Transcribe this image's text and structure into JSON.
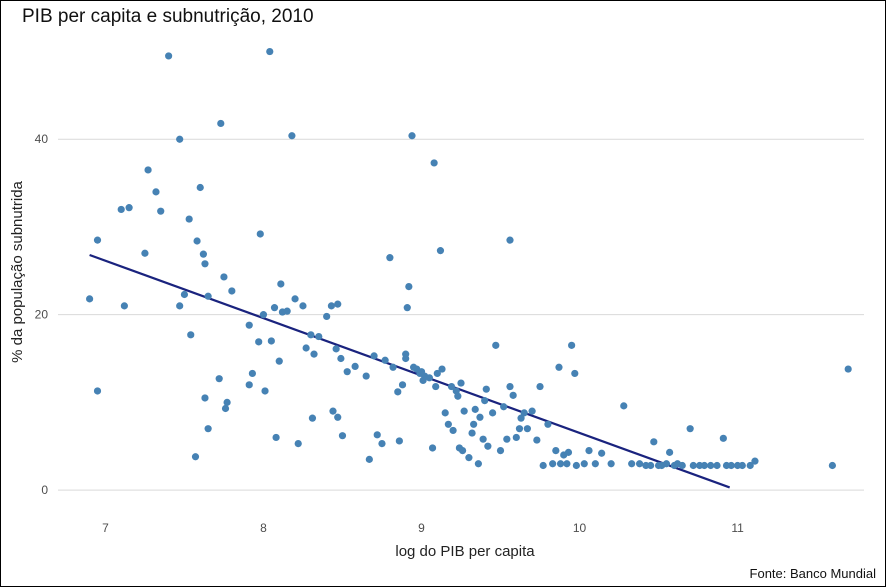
{
  "chart_data": {
    "type": "scatter",
    "title": "PIB per capita e subnutrição, 2010",
    "caption": "Fonte: Banco Mundial",
    "xlabel": "log do PIB per capita",
    "ylabel": "% da população subnutrida",
    "xlim": [
      6.7,
      11.8
    ],
    "ylim": [
      -2.5,
      52
    ],
    "x_ticks": [
      7,
      8,
      9,
      10,
      11
    ],
    "y_ticks": [
      0,
      20,
      40
    ],
    "grid": true,
    "point_color": "#4682b4",
    "line_color": "#1a237e",
    "trend_line": {
      "x": [
        6.9,
        10.95
      ],
      "y": [
        26.8,
        0.3
      ]
    },
    "points": [
      [
        6.9,
        21.8
      ],
      [
        6.95,
        28.5
      ],
      [
        6.95,
        11.3
      ],
      [
        7.1,
        32
      ],
      [
        7.12,
        21
      ],
      [
        7.15,
        32.2
      ],
      [
        7.25,
        27
      ],
      [
        7.27,
        36.5
      ],
      [
        7.32,
        34
      ],
      [
        7.35,
        31.8
      ],
      [
        7.4,
        49.5
      ],
      [
        7.47,
        40
      ],
      [
        7.47,
        21
      ],
      [
        7.5,
        22.3
      ],
      [
        7.53,
        30.9
      ],
      [
        7.54,
        17.7
      ],
      [
        7.57,
        3.8
      ],
      [
        7.58,
        28.4
      ],
      [
        7.6,
        34.5
      ],
      [
        7.62,
        26.9
      ],
      [
        7.63,
        25.8
      ],
      [
        7.63,
        10.5
      ],
      [
        7.65,
        7
      ],
      [
        7.65,
        22.1
      ],
      [
        7.72,
        12.7
      ],
      [
        7.73,
        41.8
      ],
      [
        7.75,
        24.3
      ],
      [
        7.76,
        9.3
      ],
      [
        7.77,
        10
      ],
      [
        7.8,
        22.7
      ],
      [
        7.91,
        12
      ],
      [
        7.91,
        18.8
      ],
      [
        7.93,
        13.3
      ],
      [
        7.97,
        16.9
      ],
      [
        7.98,
        29.2
      ],
      [
        8.0,
        20
      ],
      [
        8.01,
        11.3
      ],
      [
        8.04,
        50
      ],
      [
        8.05,
        17
      ],
      [
        8.07,
        20.8
      ],
      [
        8.08,
        6
      ],
      [
        8.1,
        14.7
      ],
      [
        8.11,
        23.5
      ],
      [
        8.12,
        20.3
      ],
      [
        8.15,
        20.4
      ],
      [
        8.18,
        40.4
      ],
      [
        8.2,
        21.8
      ],
      [
        8.22,
        5.3
      ],
      [
        8.25,
        21
      ],
      [
        8.27,
        16.2
      ],
      [
        8.3,
        17.7
      ],
      [
        8.31,
        8.2
      ],
      [
        8.32,
        15.5
      ],
      [
        8.35,
        17.5
      ],
      [
        8.4,
        19.8
      ],
      [
        8.43,
        21
      ],
      [
        8.44,
        9
      ],
      [
        8.46,
        16.1
      ],
      [
        8.47,
        21.2
      ],
      [
        8.47,
        8.3
      ],
      [
        8.49,
        15
      ],
      [
        8.5,
        6.2
      ],
      [
        8.53,
        13.5
      ],
      [
        8.58,
        14.1
      ],
      [
        8.65,
        13
      ],
      [
        8.67,
        3.5
      ],
      [
        8.7,
        15.3
      ],
      [
        8.72,
        6.3
      ],
      [
        8.75,
        5.3
      ],
      [
        8.77,
        14.8
      ],
      [
        8.8,
        26.5
      ],
      [
        8.82,
        14
      ],
      [
        8.85,
        11.2
      ],
      [
        8.86,
        5.6
      ],
      [
        8.88,
        12
      ],
      [
        8.9,
        15.5
      ],
      [
        8.9,
        15
      ],
      [
        8.91,
        20.8
      ],
      [
        8.92,
        23.2
      ],
      [
        8.94,
        40.4
      ],
      [
        8.95,
        14
      ],
      [
        8.97,
        13.8
      ],
      [
        8.99,
        13.3
      ],
      [
        9.0,
        13.5
      ],
      [
        9.01,
        12.5
      ],
      [
        9.02,
        13
      ],
      [
        9.05,
        12.8
      ],
      [
        9.07,
        4.8
      ],
      [
        9.08,
        37.3
      ],
      [
        9.09,
        11.8
      ],
      [
        9.1,
        13.3
      ],
      [
        9.12,
        27.3
      ],
      [
        9.13,
        13.8
      ],
      [
        9.15,
        8.8
      ],
      [
        9.17,
        7.5
      ],
      [
        9.19,
        11.8
      ],
      [
        9.2,
        6.8
      ],
      [
        9.22,
        11.3
      ],
      [
        9.23,
        10.7
      ],
      [
        9.24,
        4.8
      ],
      [
        9.25,
        12.2
      ],
      [
        9.26,
        4.5
      ],
      [
        9.27,
        9
      ],
      [
        9.3,
        3.7
      ],
      [
        9.32,
        6.5
      ],
      [
        9.33,
        7.5
      ],
      [
        9.34,
        9.2
      ],
      [
        9.36,
        3
      ],
      [
        9.37,
        8.3
      ],
      [
        9.39,
        5.8
      ],
      [
        9.4,
        10.2
      ],
      [
        9.41,
        11.5
      ],
      [
        9.42,
        5
      ],
      [
        9.45,
        8.8
      ],
      [
        9.47,
        16.5
      ],
      [
        9.5,
        4.5
      ],
      [
        9.52,
        9.5
      ],
      [
        9.54,
        5.8
      ],
      [
        9.56,
        11.8
      ],
      [
        9.56,
        28.5
      ],
      [
        9.58,
        10.8
      ],
      [
        9.6,
        6
      ],
      [
        9.62,
        7
      ],
      [
        9.63,
        8.2
      ],
      [
        9.65,
        8.8
      ],
      [
        9.67,
        7
      ],
      [
        9.7,
        9
      ],
      [
        9.73,
        5.7
      ],
      [
        9.75,
        11.8
      ],
      [
        9.77,
        2.8
      ],
      [
        9.8,
        7.5
      ],
      [
        9.83,
        3
      ],
      [
        9.85,
        4.5
      ],
      [
        9.87,
        14
      ],
      [
        9.88,
        3
      ],
      [
        9.9,
        4
      ],
      [
        9.92,
        3
      ],
      [
        9.93,
        4.3
      ],
      [
        9.95,
        16.5
      ],
      [
        9.97,
        13.3
      ],
      [
        9.98,
        2.8
      ],
      [
        10.03,
        3
      ],
      [
        10.06,
        4.5
      ],
      [
        10.1,
        3
      ],
      [
        10.14,
        4.2
      ],
      [
        10.2,
        3
      ],
      [
        10.28,
        9.6
      ],
      [
        10.33,
        3
      ],
      [
        10.38,
        3
      ],
      [
        10.42,
        2.8
      ],
      [
        10.45,
        2.8
      ],
      [
        10.47,
        5.5
      ],
      [
        10.5,
        2.8
      ],
      [
        10.52,
        2.8
      ],
      [
        10.55,
        3
      ],
      [
        10.57,
        4.3
      ],
      [
        10.6,
        2.8
      ],
      [
        10.62,
        3
      ],
      [
        10.65,
        2.8
      ],
      [
        10.7,
        7
      ],
      [
        10.72,
        2.8
      ],
      [
        10.76,
        2.8
      ],
      [
        10.79,
        2.8
      ],
      [
        10.83,
        2.8
      ],
      [
        10.87,
        2.8
      ],
      [
        10.91,
        5.9
      ],
      [
        10.93,
        2.8
      ],
      [
        10.96,
        2.8
      ],
      [
        11.0,
        2.8
      ],
      [
        11.03,
        2.8
      ],
      [
        11.08,
        2.8
      ],
      [
        11.11,
        3.3
      ],
      [
        11.6,
        2.8
      ],
      [
        11.7,
        13.8
      ]
    ]
  }
}
